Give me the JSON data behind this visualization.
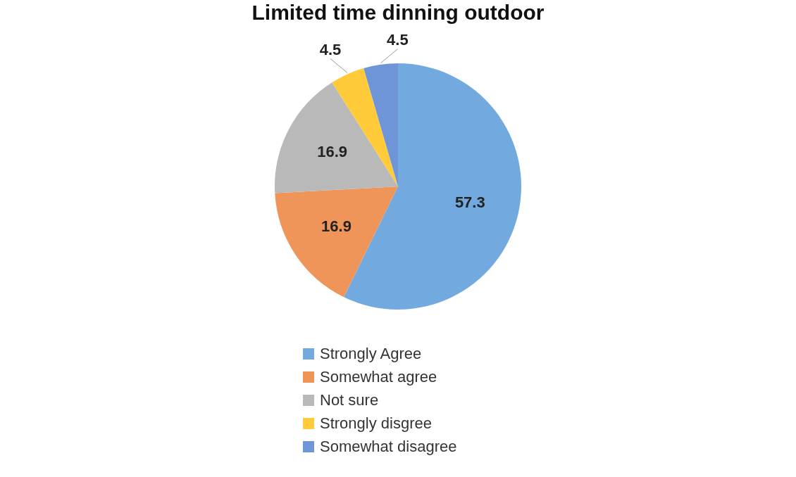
{
  "chart_data": {
    "type": "pie",
    "title": "Limited time dinning outdoor",
    "categories": [
      "Strongly Agree",
      "Somewhat agree",
      "Not sure",
      "Strongly disgree",
      "Somewhat disagree"
    ],
    "values": [
      57.3,
      16.9,
      16.9,
      4.5,
      4.5
    ],
    "colors": [
      "#72a9df",
      "#f0955a",
      "#b9b9b9",
      "#ffcb3a",
      "#6f95d9"
    ],
    "data_labels": true,
    "legend": "bottom"
  }
}
